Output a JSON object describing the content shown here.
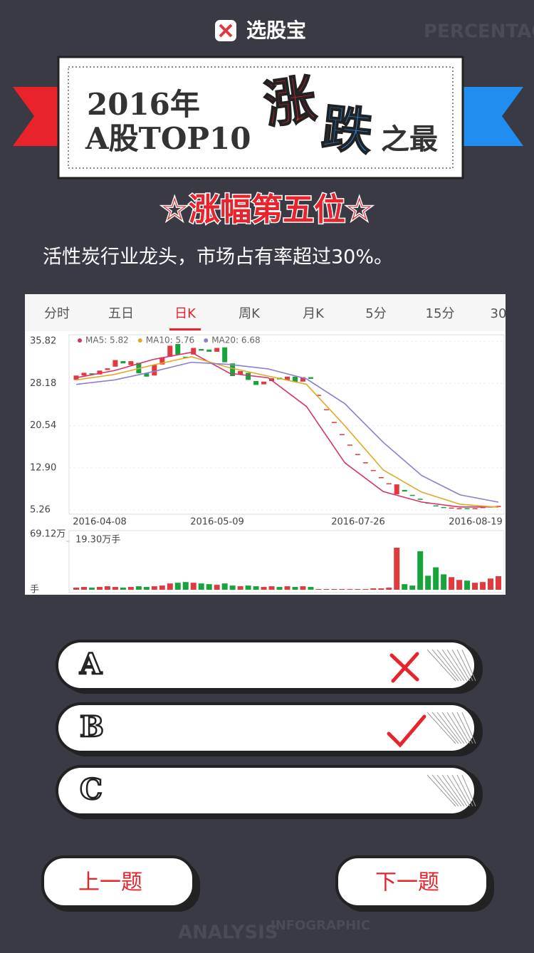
{
  "app": {
    "logo_text": "选股宝"
  },
  "background_texts": [
    "PERCENTAGE",
    "ANALYSIS",
    "INFOGRAPHIC"
  ],
  "banner": {
    "line1": "2016年",
    "line2": "A股TOP10",
    "rise": "涨",
    "fall": "跌",
    "suffix": "之最"
  },
  "rank_title": "☆涨幅第五位☆",
  "description": "活性炭行业龙头，市场占有率超过30%。",
  "stock_chart": {
    "tabs": [
      "分时",
      "五日",
      "日K",
      "周K",
      "月K",
      "5分",
      "15分",
      "30"
    ],
    "active_tab": 2,
    "ylim": [
      4.49,
      36.98
    ],
    "yticks": [
      35.82,
      28.18,
      20.54,
      {
        "value": 12.9,
        "label": "12.90"
      },
      5.26
    ],
    "x_labels": [
      "2016-04-08",
      "2016-05-09",
      "2016-07-26",
      "2016-08-19"
    ],
    "colors": {
      "up": "#e0393e",
      "down": "#19a33b"
    },
    "candles": {
      "open": [
        28.8,
        29.6,
        30.0,
        29.8,
        30.6,
        31.2,
        32.2,
        31.5,
        31.9,
        30.0,
        29.6,
        31.6,
        33.0,
        35.3,
        33.0,
        33.4,
        34.4,
        34.3,
        33.9,
        34.7,
        31.8,
        29.8,
        30.1,
        28.6,
        28.0,
        28.6,
        29.2,
        28.8,
        29.4,
        28.5,
        29.3,
        26.1,
        23.5,
        21.2,
        19.0,
        17.1,
        15.4,
        13.9,
        12.5,
        11.2,
        10.1,
        8.1,
        8.9,
        8.0,
        7.3,
        6.6,
        6.1,
        5.8,
        5.6,
        5.5,
        5.6,
        5.5,
        5.6,
        5.7,
        5.8
      ],
      "close": [
        29.6,
        30.1,
        29.8,
        30.5,
        30.9,
        32.4,
        31.8,
        32.2,
        30.0,
        29.4,
        31.5,
        32.9,
        35.0,
        33.4,
        32.8,
        34.6,
        34.1,
        33.9,
        34.6,
        32.0,
        29.5,
        30.4,
        28.8,
        27.9,
        28.5,
        29.1,
        28.9,
        29.4,
        28.4,
        29.3,
        29.0,
        26.1,
        23.5,
        21.2,
        19.0,
        17.1,
        15.4,
        13.9,
        12.5,
        11.2,
        10.1,
        9.9,
        8.6,
        7.8,
        7.1,
        6.5,
        6.0,
        5.7,
        5.7,
        5.6,
        5.5,
        5.6,
        5.8,
        5.9,
        6.0
      ]
    },
    "series": [
      {
        "name": "MA5: 5.82",
        "color": "#d6336c",
        "values": [
          29.2,
          30.5,
          32.5,
          33.8,
          30.0,
          29.2,
          24.0,
          13.8,
          8.6,
          6.7,
          5.8,
          5.82
        ]
      },
      {
        "name": "MA10: 5.76",
        "color": "#e0a92a",
        "values": [
          28.8,
          29.8,
          31.5,
          33.0,
          31.0,
          29.5,
          28.0,
          20.5,
          12.5,
          8.5,
          6.3,
          5.76
        ]
      },
      {
        "name": "MA20: 6.68",
        "color": "#8a7fd1",
        "values": [
          28.0,
          28.8,
          30.3,
          32.0,
          31.6,
          30.8,
          29.0,
          24.5,
          17.5,
          11.5,
          8.0,
          6.68
        ]
      }
    ],
    "volume": {
      "ylim": [
        0,
        69.12
      ],
      "top_tick": {
        "value": 69.12,
        "label": "69.12万"
      },
      "current_label": "19.30万手",
      "unit": "手",
      "values": [
        3,
        4,
        3,
        4,
        5,
        4,
        3,
        4,
        5,
        4,
        5,
        6,
        9,
        10,
        11,
        10,
        9,
        8,
        7,
        9,
        6,
        5,
        6,
        5,
        4,
        5,
        4,
        5,
        4,
        5,
        4,
        1,
        1,
        1,
        1,
        1,
        1,
        1,
        2,
        2,
        3,
        60,
        8,
        6,
        55,
        20,
        32,
        22,
        18,
        14,
        13,
        10,
        11,
        16,
        19.3
      ]
    }
  },
  "options": [
    {
      "label": "A",
      "result": "wrong"
    },
    {
      "label": "B",
      "result": "right"
    },
    {
      "label": "C"
    }
  ],
  "nav": {
    "prev": "上一题",
    "next": "下一题"
  }
}
